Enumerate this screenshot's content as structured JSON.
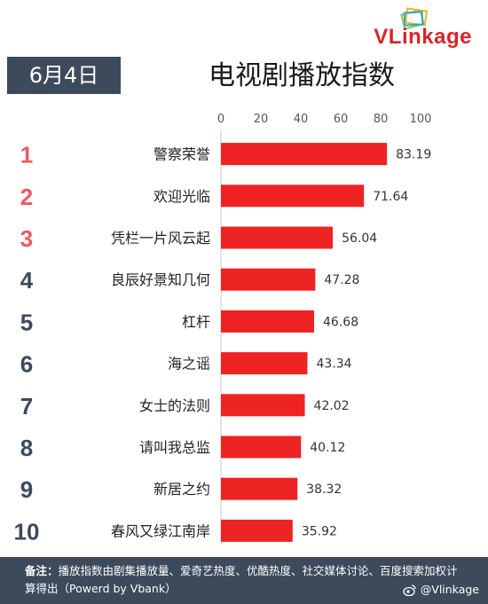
{
  "brand": {
    "logo_prefix": "VL",
    "logo_mid": "ink",
    "logo_suffix": "age",
    "accent": "#d6262b"
  },
  "header": {
    "date": "6月4日",
    "title": "电视剧播放指数"
  },
  "chart_data": {
    "type": "bar",
    "orientation": "horizontal",
    "title": "电视剧播放指数",
    "xlim": [
      0,
      100
    ],
    "xticks": [
      0,
      20,
      40,
      60,
      80,
      100
    ],
    "grid": false,
    "ranks": [
      "1",
      "2",
      "3",
      "4",
      "5",
      "6",
      "7",
      "8",
      "9",
      "10"
    ],
    "categories": [
      "警察荣誉",
      "欢迎光临",
      "凭栏一片风云起",
      "良辰好景知几何",
      "杠杆",
      "海之谣",
      "女士的法则",
      "请叫我总监",
      "新居之约",
      "春风又绿江南岸"
    ],
    "values": [
      83.19,
      71.64,
      56.04,
      47.28,
      46.68,
      43.34,
      42.02,
      40.12,
      38.32,
      35.92
    ],
    "value_labels": [
      "83.19",
      "71.64",
      "56.04",
      "47.28",
      "46.68",
      "43.34",
      "42.02",
      "40.12",
      "38.32",
      "35.92"
    ],
    "bar_color": "#ee2324",
    "top_rank_color": "#ea5a5f",
    "rank_color": "#3c4a5c"
  },
  "footer": {
    "note_lead": "备注：",
    "note_body": "播放指数由剧集播放量、爱奇艺热度、优酷热度、社交媒体讨论、百度搜索加权计算得出（Powerd by Vbank）",
    "weibo_handle": "@Vlinkage"
  }
}
